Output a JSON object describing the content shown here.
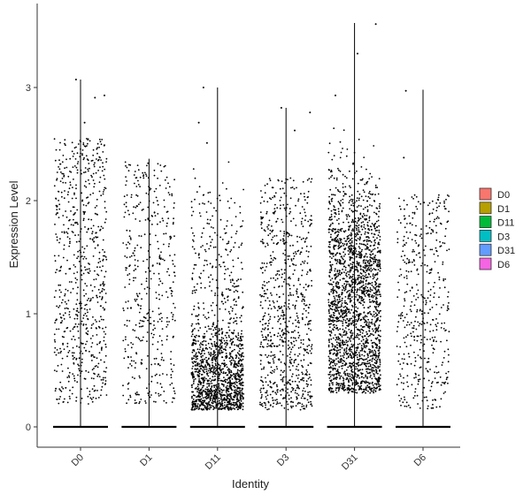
{
  "chart_data": {
    "type": "scatter",
    "subtype": "violin-with-jitter",
    "xlabel": "Identity",
    "ylabel": "Expression Level",
    "categories": [
      "D0",
      "D1",
      "D11",
      "D3",
      "D31",
      "D6"
    ],
    "ylim": [
      -0.18,
      3.72
    ],
    "yticks": [
      0,
      1,
      2,
      3
    ],
    "grid": false,
    "legend": {
      "placement": "right",
      "entries": [
        {
          "label": "D0",
          "color": "#F8766D"
        },
        {
          "label": "D1",
          "color": "#B79F00"
        },
        {
          "label": "D11",
          "color": "#00BA38"
        },
        {
          "label": "D3",
          "color": "#00BFC4"
        },
        {
          "label": "D31",
          "color": "#619CFF"
        },
        {
          "label": "D6",
          "color": "#F564E3"
        }
      ]
    },
    "series": [
      {
        "category": "D0",
        "max": 3.07,
        "n_expressing": 700,
        "distribution": "uniform",
        "range": [
          0.2,
          2.55
        ]
      },
      {
        "category": "D1",
        "max": 2.37,
        "n_expressing": 430,
        "distribution": "uniform",
        "range": [
          0.2,
          2.35
        ]
      },
      {
        "category": "D11",
        "max": 3.0,
        "n_expressing": 1450,
        "distribution": "skewed-low",
        "range": [
          0.15,
          2.4
        ]
      },
      {
        "category": "D3",
        "max": 2.82,
        "n_expressing": 800,
        "distribution": "moderate",
        "range": [
          0.15,
          2.2
        ]
      },
      {
        "category": "D31",
        "max": 3.57,
        "n_expressing": 2100,
        "distribution": "mid-dense",
        "range": [
          0.3,
          2.75
        ]
      },
      {
        "category": "D6",
        "max": 2.98,
        "n_expressing": 450,
        "distribution": "uniform",
        "range": [
          0.15,
          2.05
        ]
      }
    ],
    "outliers": [
      {
        "category": "D0",
        "y": 3.07
      },
      {
        "category": "D0",
        "y": 2.93
      },
      {
        "category": "D0",
        "y": 2.91
      },
      {
        "category": "D0",
        "y": 2.69
      },
      {
        "category": "D11",
        "y": 3.0
      },
      {
        "category": "D11",
        "y": 2.69
      },
      {
        "category": "D11",
        "y": 2.51
      },
      {
        "category": "D3",
        "y": 2.82
      },
      {
        "category": "D3",
        "y": 2.78
      },
      {
        "category": "D3",
        "y": 2.62
      },
      {
        "category": "D31",
        "y": 3.56
      },
      {
        "category": "D31",
        "y": 3.3
      },
      {
        "category": "D31",
        "y": 2.93
      },
      {
        "category": "D6",
        "y": 2.97
      },
      {
        "category": "D6",
        "y": 2.38
      }
    ]
  }
}
